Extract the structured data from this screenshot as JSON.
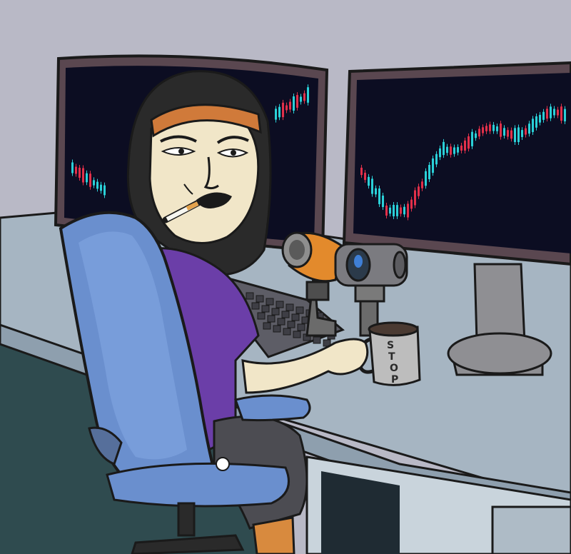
{
  "illustration": {
    "mug": {
      "letters": [
        "S",
        "T",
        "O",
        "P"
      ]
    },
    "colors": {
      "wall": "#b9b9c6",
      "desk_top": "#a6b5c2",
      "floor": "#2f4b4f",
      "monitor_frame": "#5a4750",
      "screen": "#0c0d22",
      "candle_up": "#2ad0d8",
      "candle_down": "#e2304a",
      "chair": "#6a8fce",
      "shirt": "#6b3ea8",
      "headband": "#d07a3a",
      "skin": "#f1e6c8",
      "mic": "#e38a2c"
    }
  }
}
